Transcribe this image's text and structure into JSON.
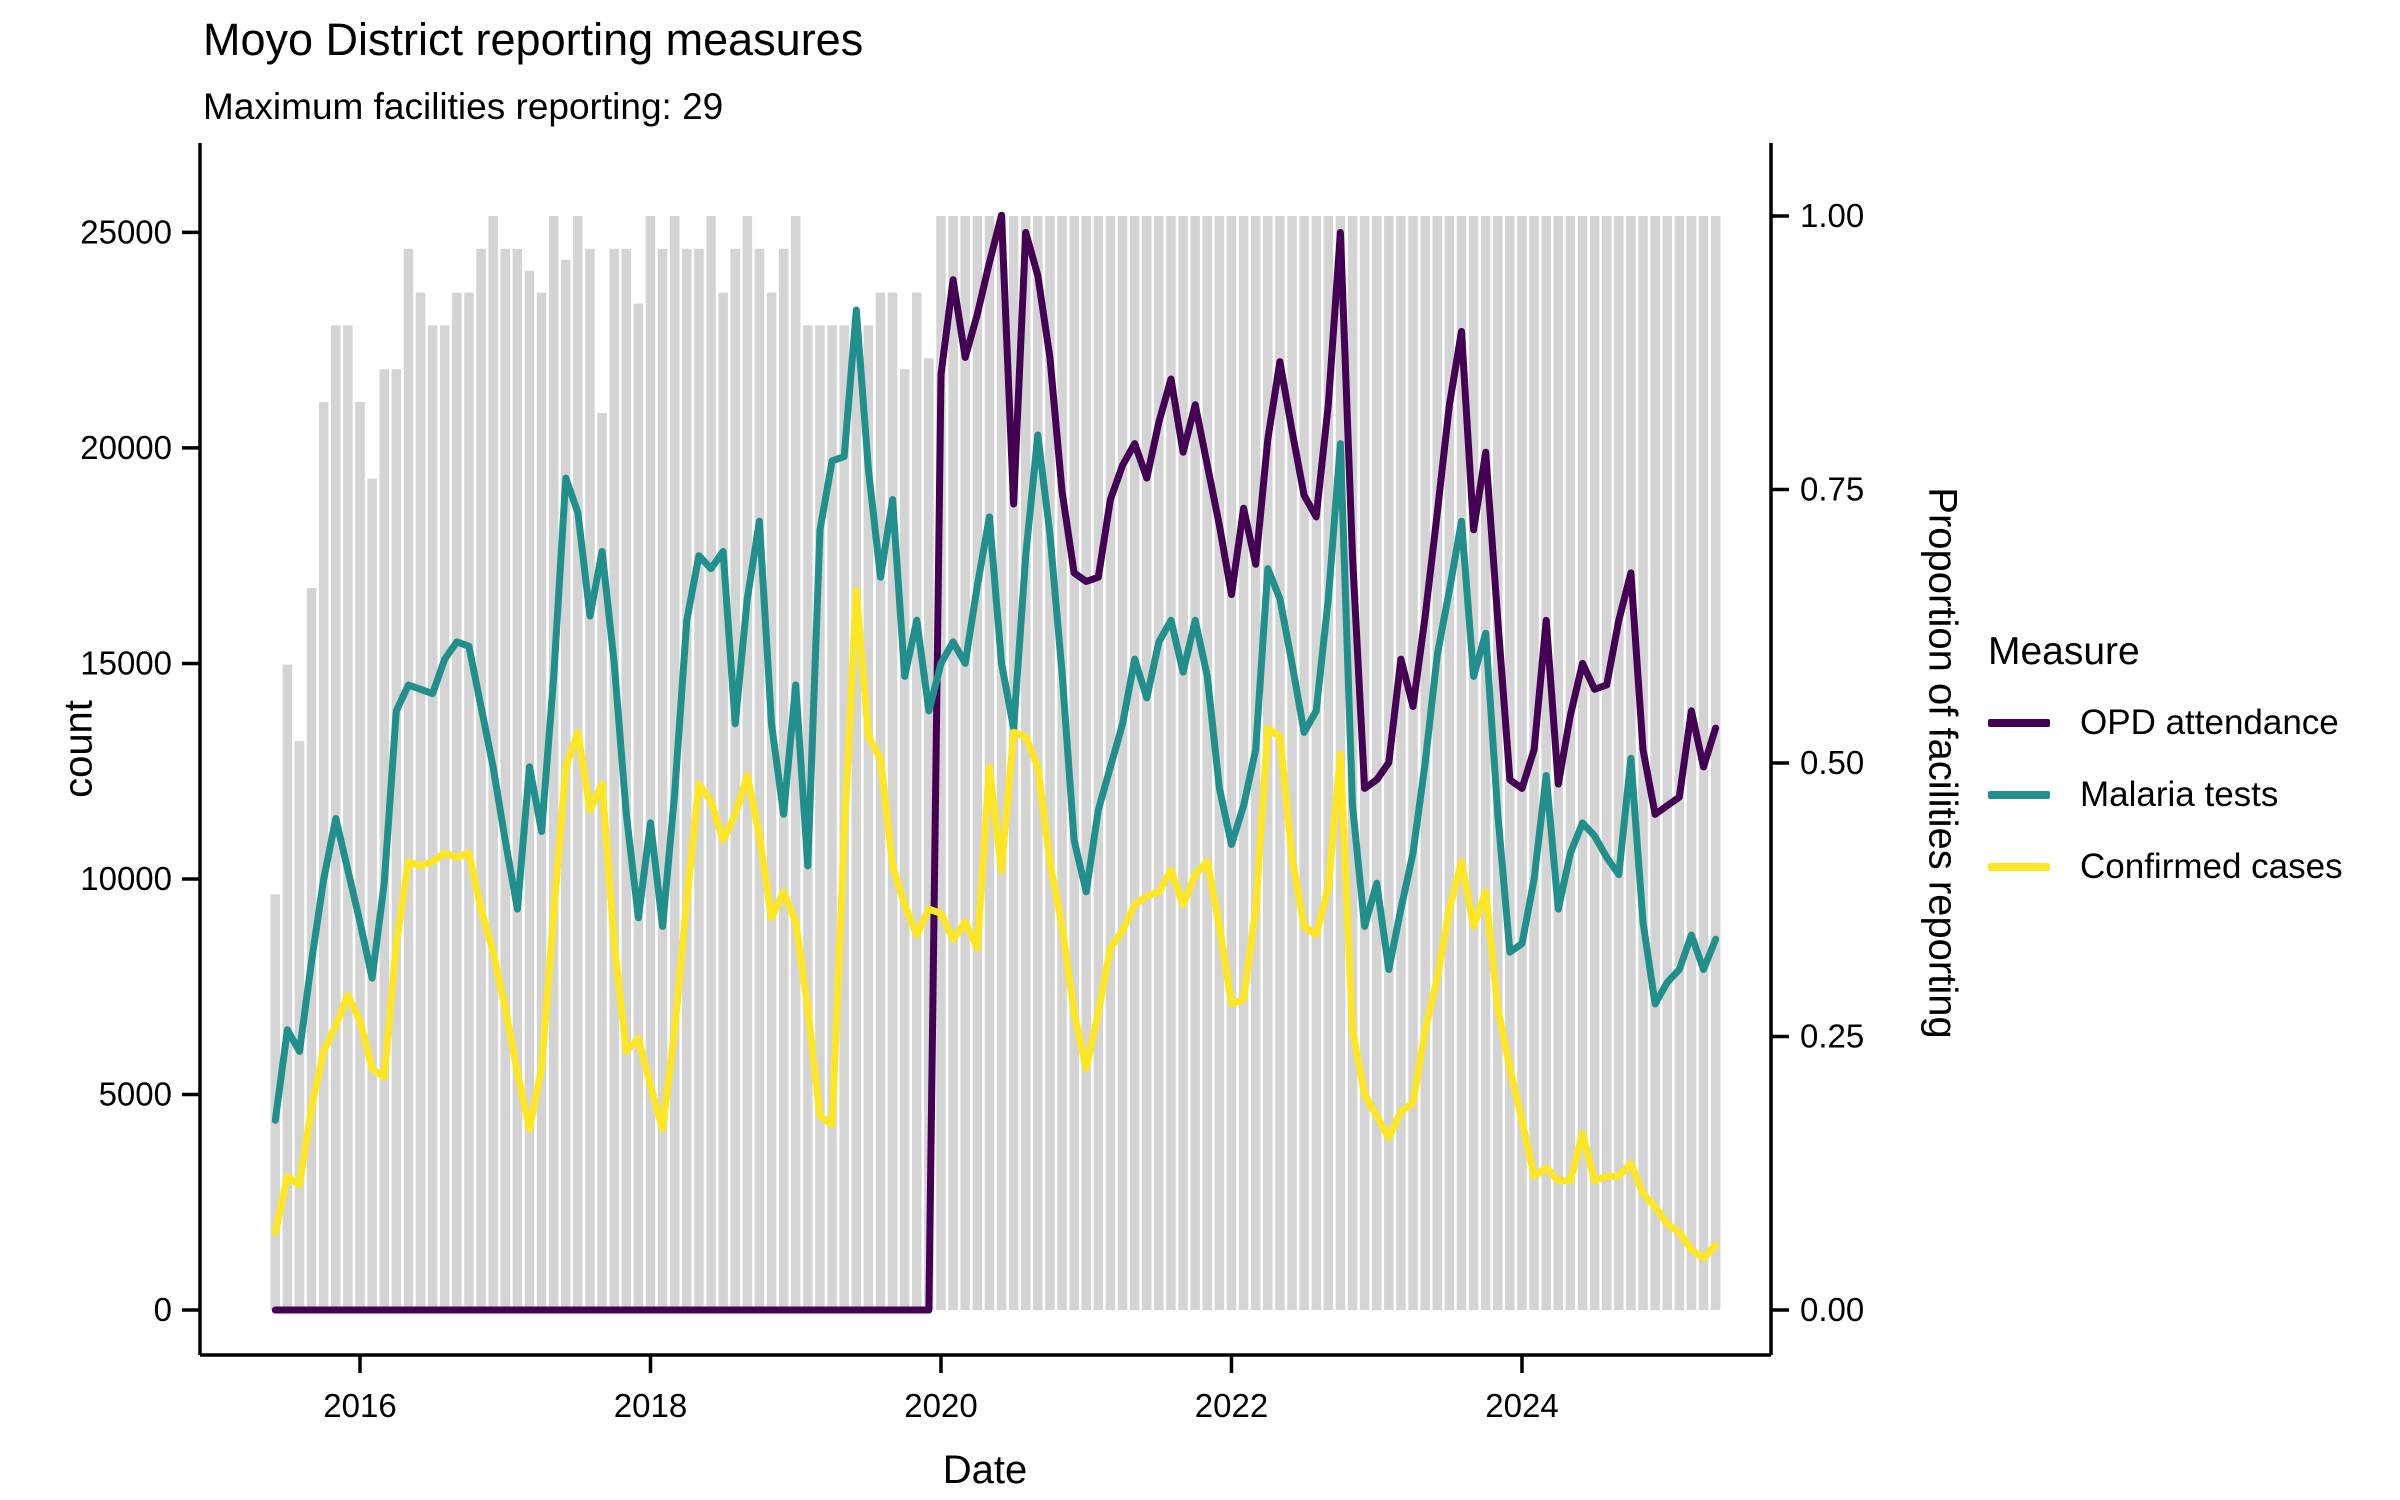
{
  "header": {
    "title": "Moyo District reporting measures",
    "subtitle": "Maximum facilities reporting: 29"
  },
  "axes": {
    "left_label": "count",
    "bottom_label": "Date",
    "right_label": "Proportion of facilities reporting",
    "left_ticks": [
      0,
      5000,
      10000,
      15000,
      20000,
      25000
    ],
    "right_ticks": [
      "0.00",
      "0.25",
      "0.50",
      "0.75",
      "1.00"
    ],
    "bottom_ticks": [
      "2016",
      "2018",
      "2020",
      "2022",
      "2024"
    ]
  },
  "legend": {
    "title": "Measure",
    "items": [
      {
        "label": "OPD attendance",
        "color": "#440154"
      },
      {
        "label": "Malaria tests",
        "color": "#21908C"
      },
      {
        "label": "Confirmed cases",
        "color": "#FDE725"
      }
    ]
  },
  "colors": {
    "bar": "#d4d4d4",
    "axis": "#000000",
    "text": "#000000"
  },
  "chart_data": {
    "type": "line",
    "title": "Moyo District reporting measures",
    "subtitle": "Maximum facilities reporting: 29",
    "xlabel": "Date",
    "ylabel_left": "count",
    "ylabel_right": "Proportion of facilities reporting",
    "ylim_left": [
      0,
      25380
    ],
    "ylim_right": [
      0,
      1.0
    ],
    "max_facilities": 29,
    "grid": false,
    "legend_position": "right",
    "months": [
      "2015-06",
      "2015-07",
      "2015-08",
      "2015-09",
      "2015-10",
      "2015-11",
      "2015-12",
      "2016-01",
      "2016-02",
      "2016-03",
      "2016-04",
      "2016-05",
      "2016-06",
      "2016-07",
      "2016-08",
      "2016-09",
      "2016-10",
      "2016-11",
      "2016-12",
      "2017-01",
      "2017-02",
      "2017-03",
      "2017-04",
      "2017-05",
      "2017-06",
      "2017-07",
      "2017-08",
      "2017-09",
      "2017-10",
      "2017-11",
      "2017-12",
      "2018-01",
      "2018-02",
      "2018-03",
      "2018-04",
      "2018-05",
      "2018-06",
      "2018-07",
      "2018-08",
      "2018-09",
      "2018-10",
      "2018-11",
      "2018-12",
      "2019-01",
      "2019-02",
      "2019-03",
      "2019-04",
      "2019-05",
      "2019-06",
      "2019-07",
      "2019-08",
      "2019-09",
      "2019-10",
      "2019-11",
      "2019-12",
      "2020-01",
      "2020-02",
      "2020-03",
      "2020-04",
      "2020-05",
      "2020-06",
      "2020-07",
      "2020-08",
      "2020-09",
      "2020-10",
      "2020-11",
      "2020-12",
      "2021-01",
      "2021-02",
      "2021-03",
      "2021-04",
      "2021-05",
      "2021-06",
      "2021-07",
      "2021-08",
      "2021-09",
      "2021-10",
      "2021-11",
      "2021-12",
      "2022-01",
      "2022-02",
      "2022-03",
      "2022-04",
      "2022-05",
      "2022-06",
      "2022-07",
      "2022-08",
      "2022-09",
      "2022-10",
      "2022-11",
      "2022-12",
      "2023-01",
      "2023-02",
      "2023-03",
      "2023-04",
      "2023-05",
      "2023-06",
      "2023-07",
      "2023-08",
      "2023-09",
      "2023-10",
      "2023-11",
      "2023-12",
      "2024-01",
      "2024-02",
      "2024-03",
      "2024-04",
      "2024-05",
      "2024-06",
      "2024-07",
      "2024-08",
      "2024-09",
      "2024-10",
      "2024-11",
      "2024-12",
      "2025-01",
      "2025-02",
      "2025-03",
      "2025-04",
      "2025-05"
    ],
    "bars": {
      "name": "Proportion of facilities reporting",
      "axis": "right",
      "values": [
        0.38,
        0.59,
        0.52,
        0.66,
        0.83,
        0.9,
        0.9,
        0.83,
        0.76,
        0.86,
        0.86,
        0.97,
        0.93,
        0.9,
        0.9,
        0.93,
        0.93,
        0.97,
        1.0,
        0.97,
        0.97,
        0.95,
        0.93,
        1.0,
        0.96,
        1.0,
        0.97,
        0.82,
        0.97,
        0.97,
        0.92,
        1.0,
        0.97,
        1.0,
        0.97,
        0.97,
        1.0,
        0.93,
        0.97,
        1.0,
        0.97,
        0.93,
        0.97,
        1.0,
        0.9,
        0.9,
        0.9,
        0.9,
        0.9,
        0.9,
        0.93,
        0.93,
        0.86,
        0.93,
        0.87,
        1.0,
        1.0,
        1.0,
        1.0,
        1.0,
        1.0,
        1.0,
        1.0,
        1.0,
        1.0,
        1.0,
        1.0,
        1.0,
        1.0,
        1.0,
        1.0,
        1.0,
        1.0,
        1.0,
        1.0,
        1.0,
        1.0,
        1.0,
        1.0,
        1.0,
        1.0,
        1.0,
        1.0,
        1.0,
        1.0,
        1.0,
        1.0,
        1.0,
        1.0,
        1.0,
        1.0,
        1.0,
        1.0,
        1.0,
        1.0,
        1.0,
        1.0,
        1.0,
        1.0,
        1.0,
        1.0,
        1.0,
        1.0,
        1.0,
        1.0,
        1.0,
        1.0,
        1.0,
        1.0,
        1.0,
        1.0,
        1.0,
        1.0,
        1.0,
        1.0,
        1.0,
        1.0,
        1.0,
        1.0,
        1.0
      ]
    },
    "series": [
      {
        "name": "OPD attendance",
        "color": "#440154",
        "axis": "left",
        "values": [
          0,
          0,
          0,
          0,
          0,
          0,
          0,
          0,
          0,
          0,
          0,
          0,
          0,
          0,
          0,
          0,
          0,
          0,
          0,
          0,
          0,
          0,
          0,
          0,
          0,
          0,
          0,
          0,
          0,
          0,
          0,
          0,
          0,
          0,
          0,
          0,
          0,
          0,
          0,
          0,
          0,
          0,
          0,
          0,
          0,
          0,
          0,
          0,
          0,
          0,
          0,
          0,
          0,
          0,
          0,
          21700,
          23900,
          22100,
          23100,
          24300,
          25400,
          18700,
          25000,
          24000,
          22100,
          19000,
          17100,
          16900,
          17000,
          18800,
          19600,
          20100,
          19300,
          20600,
          21600,
          19900,
          21000,
          19600,
          18200,
          16600,
          18600,
          17300,
          20200,
          22000,
          20400,
          18900,
          18400,
          21000,
          25000,
          17500,
          12100,
          12300,
          12700,
          15100,
          14000,
          16100,
          18500,
          21000,
          22700,
          18100,
          19900,
          16000,
          12300,
          12100,
          13000,
          16000,
          12200,
          13800,
          15000,
          14400,
          14500,
          16000,
          17100,
          13000,
          11500,
          11700,
          11900,
          13900,
          12600,
          13500
        ]
      },
      {
        "name": "Malaria tests",
        "color": "#21908C",
        "axis": "left",
        "values": [
          4400,
          6500,
          6000,
          8100,
          10000,
          11400,
          10200,
          9000,
          7700,
          9900,
          13900,
          14500,
          14400,
          14300,
          15100,
          15500,
          15400,
          14000,
          12600,
          10900,
          9300,
          12600,
          11100,
          14700,
          19300,
          18500,
          16100,
          17600,
          15000,
          11500,
          9100,
          11300,
          8900,
          12000,
          16000,
          17500,
          17200,
          17600,
          13600,
          16500,
          18300,
          13600,
          11500,
          14500,
          10300,
          18100,
          19700,
          19800,
          23200,
          19500,
          17000,
          18800,
          14700,
          16000,
          13900,
          15000,
          15500,
          15000,
          16800,
          18400,
          15000,
          13500,
          17500,
          20300,
          18000,
          14800,
          10900,
          9700,
          11600,
          12600,
          13600,
          15100,
          14200,
          15500,
          16000,
          14800,
          16000,
          14700,
          12100,
          10800,
          11700,
          13000,
          17200,
          16500,
          15000,
          13400,
          13900,
          16500,
          20100,
          11700,
          8900,
          9900,
          7900,
          9300,
          10600,
          12700,
          15200,
          16700,
          18300,
          14700,
          15700,
          11500,
          8300,
          8500,
          10000,
          12400,
          9300,
          10600,
          11300,
          11000,
          10500,
          10100,
          12800,
          9000,
          7100,
          7600,
          7900,
          8700,
          7900,
          8600
        ]
      },
      {
        "name": "Confirmed cases",
        "color": "#FDE725",
        "axis": "left",
        "values": [
          1800,
          3100,
          2900,
          4700,
          6000,
          6600,
          7300,
          6700,
          5600,
          5400,
          8500,
          10400,
          10300,
          10400,
          10600,
          10500,
          10600,
          9300,
          8300,
          7000,
          5500,
          4200,
          5600,
          9200,
          12600,
          13400,
          11600,
          12200,
          8500,
          6000,
          6300,
          5200,
          4200,
          6500,
          9500,
          12200,
          11800,
          10900,
          11500,
          12400,
          11000,
          9100,
          9700,
          9000,
          7000,
          4500,
          4300,
          11000,
          16700,
          13300,
          12800,
          10300,
          9400,
          8700,
          9300,
          9200,
          8600,
          9000,
          8400,
          12600,
          10200,
          13400,
          13300,
          12600,
          10400,
          8900,
          6900,
          5600,
          6900,
          8400,
          8800,
          9400,
          9600,
          9700,
          10200,
          9400,
          10100,
          10400,
          8900,
          7100,
          7200,
          9300,
          13500,
          13300,
          10500,
          8900,
          8700,
          9800,
          12900,
          6500,
          5000,
          4500,
          4000,
          4600,
          4800,
          6500,
          7700,
          9300,
          10400,
          8900,
          9700,
          7000,
          5600,
          4400,
          3100,
          3300,
          3000,
          3000,
          4100,
          3000,
          3100,
          3100,
          3400,
          2700,
          2400,
          2000,
          1800,
          1400,
          1200,
          1500
        ]
      }
    ]
  }
}
